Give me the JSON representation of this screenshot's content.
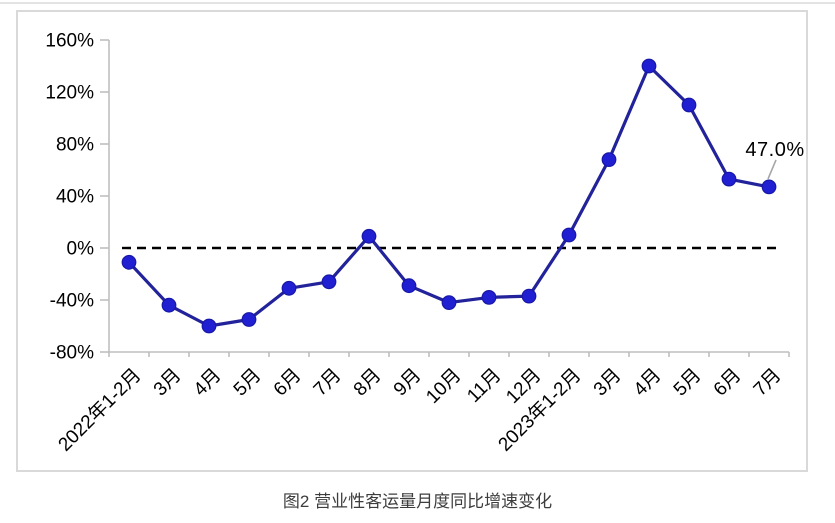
{
  "caption": "图2 营业性客运量月度同比增速变化",
  "chart_data": {
    "type": "line",
    "title": "图2 营业性客运量月度同比增速变化",
    "categories": [
      "2022年1-2月",
      "3月",
      "4月",
      "5月",
      "6月",
      "7月",
      "8月",
      "9月",
      "10月",
      "11月",
      "12月",
      "2023年1-2月",
      "3月",
      "4月",
      "5月",
      "6月",
      "7月"
    ],
    "series": [
      {
        "name": "营业性客运量月度同比增速",
        "values": [
          -11,
          -44,
          -60,
          -55,
          -31,
          -26,
          9,
          -29,
          -42,
          -38,
          -37,
          10,
          68,
          140,
          110,
          53,
          47
        ]
      }
    ],
    "ylabel": "",
    "xlabel": "",
    "ylim": [
      -80,
      160
    ],
    "y_ticks": [
      160,
      120,
      80,
      40,
      0,
      -40,
      -80
    ],
    "y_tick_labels": [
      "160%",
      "120%",
      "80%",
      "40%",
      "0%",
      "-40%",
      "-80%"
    ],
    "grid": false,
    "legend_position": "none",
    "zero_line_style": "dashed-black",
    "annotation": {
      "text": "47.0%",
      "category": "7月",
      "value": 47.0
    },
    "colors": {
      "line": "#22229b",
      "marker_fill": "#2020d2",
      "marker_stroke": "#1717a8",
      "axis": "#bfbfbf",
      "zero_line": "#000000",
      "box_border": "#d9d9d9",
      "leader_line": "#a6a6a6"
    }
  }
}
